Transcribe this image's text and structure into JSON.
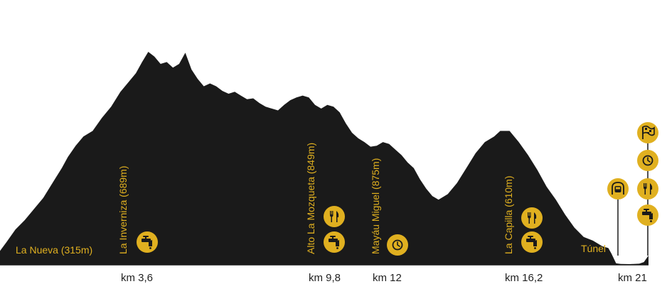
{
  "colors": {
    "profile": "#1a1a1a",
    "accent": "#e0b020",
    "icon_fg": "#1a1a1a",
    "baseline": "#1a1a1a",
    "km_text": "#222222"
  },
  "chart_data": {
    "type": "area",
    "title": "",
    "xlabel": "",
    "ylabel": "",
    "xlim": [
      0,
      21
    ],
    "grid": false,
    "profile": [
      [
        0.0,
        315
      ],
      [
        0.2,
        360
      ],
      [
        0.5,
        430
      ],
      [
        0.8,
        480
      ],
      [
        1.1,
        540
      ],
      [
        1.4,
        600
      ],
      [
        1.7,
        680
      ],
      [
        2.0,
        760
      ],
      [
        2.2,
        820
      ],
      [
        2.45,
        880
      ],
      [
        2.7,
        930
      ],
      [
        3.0,
        960
      ],
      [
        3.3,
        1030
      ],
      [
        3.6,
        1090
      ],
      [
        3.9,
        1170
      ],
      [
        4.2,
        1230
      ],
      [
        4.4,
        1270
      ],
      [
        4.6,
        1330
      ],
      [
        4.8,
        1385
      ],
      [
        5.0,
        1360
      ],
      [
        5.2,
        1320
      ],
      [
        5.4,
        1330
      ],
      [
        5.6,
        1300
      ],
      [
        5.8,
        1320
      ],
      [
        6.0,
        1380
      ],
      [
        6.2,
        1290
      ],
      [
        6.4,
        1240
      ],
      [
        6.6,
        1200
      ],
      [
        6.8,
        1215
      ],
      [
        7.0,
        1200
      ],
      [
        7.2,
        1175
      ],
      [
        7.4,
        1160
      ],
      [
        7.6,
        1170
      ],
      [
        7.8,
        1150
      ],
      [
        8.0,
        1130
      ],
      [
        8.2,
        1135
      ],
      [
        8.4,
        1110
      ],
      [
        8.6,
        1090
      ],
      [
        8.8,
        1080
      ],
      [
        9.0,
        1070
      ],
      [
        9.2,
        1100
      ],
      [
        9.4,
        1125
      ],
      [
        9.6,
        1140
      ],
      [
        9.8,
        1150
      ],
      [
        10.0,
        1140
      ],
      [
        10.2,
        1100
      ],
      [
        10.4,
        1080
      ],
      [
        10.6,
        1100
      ],
      [
        10.8,
        1090
      ],
      [
        11.0,
        1060
      ],
      [
        11.2,
        1000
      ],
      [
        11.4,
        950
      ],
      [
        11.6,
        920
      ],
      [
        11.8,
        900
      ],
      [
        12.0,
        875
      ],
      [
        12.2,
        880
      ],
      [
        12.4,
        900
      ],
      [
        12.6,
        890
      ],
      [
        12.8,
        860
      ],
      [
        13.0,
        830
      ],
      [
        13.2,
        790
      ],
      [
        13.4,
        760
      ],
      [
        13.6,
        700
      ],
      [
        13.8,
        650
      ],
      [
        14.0,
        610
      ],
      [
        14.2,
        590
      ],
      [
        14.5,
        620
      ],
      [
        14.8,
        680
      ],
      [
        15.1,
        760
      ],
      [
        15.4,
        840
      ],
      [
        15.7,
        900
      ],
      [
        16.0,
        930
      ],
      [
        16.2,
        960
      ],
      [
        16.5,
        960
      ],
      [
        16.8,
        900
      ],
      [
        17.1,
        830
      ],
      [
        17.4,
        750
      ],
      [
        17.7,
        660
      ],
      [
        18.0,
        590
      ],
      [
        18.3,
        510
      ],
      [
        18.6,
        440
      ],
      [
        18.9,
        390
      ],
      [
        19.2,
        370
      ],
      [
        19.5,
        340
      ],
      [
        19.7,
        330
      ],
      [
        19.8,
        300
      ],
      [
        19.95,
        248
      ],
      [
        20.1,
        245
      ],
      [
        20.4,
        244
      ],
      [
        20.7,
        246
      ],
      [
        20.85,
        255
      ],
      [
        21.0,
        290
      ]
    ],
    "labels": [
      {
        "text": "La Nueva (315m)"
      },
      {
        "text": "La Inverniza (689m)"
      },
      {
        "text": "Alto La Mozqueta (849m)"
      },
      {
        "text": "Mayáu Miguel (875m)"
      },
      {
        "text": "La Capilla (610m)"
      },
      {
        "text": "Túnel"
      }
    ],
    "km_markers": [
      {
        "km": 3.6,
        "text": "km 3,6"
      },
      {
        "km": 9.8,
        "text": "km 9,8"
      },
      {
        "km": 12,
        "text": "km 12"
      },
      {
        "km": 16.2,
        "text": "km 16,2"
      },
      {
        "km": 21,
        "text": "km 21"
      }
    ],
    "icons": [
      {
        "km": 3.6,
        "name": "water-tap-icon"
      },
      {
        "km": 9.8,
        "name": "food-icon"
      },
      {
        "km": 9.8,
        "name": "water-tap-icon"
      },
      {
        "km": 12,
        "name": "clock-icon"
      },
      {
        "km": 16.2,
        "name": "food-icon"
      },
      {
        "km": 16.2,
        "name": "water-tap-icon"
      },
      {
        "km": 19.9,
        "name": "tunnel-icon"
      },
      {
        "km": 21,
        "name": "finish-flag-icon"
      },
      {
        "km": 21,
        "name": "clock-icon"
      },
      {
        "km": 21,
        "name": "food-icon"
      },
      {
        "km": 21,
        "name": "water-tap-icon"
      }
    ]
  }
}
